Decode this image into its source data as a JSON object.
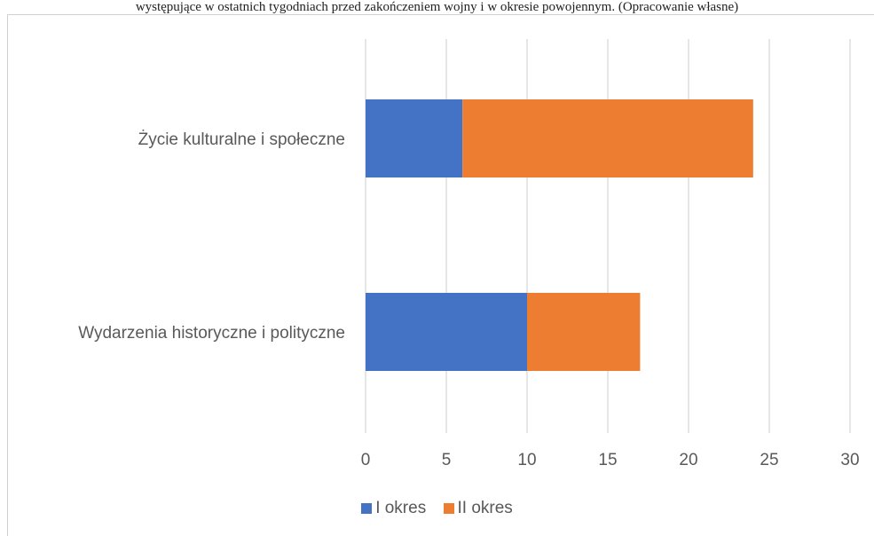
{
  "caption": "występujące w ostatnich tygodniach przed zakończeniem wojny i w okresie powojennym. (Opracowanie własne)",
  "chart_data": {
    "type": "bar",
    "orientation": "horizontal",
    "stacked": true,
    "title": "",
    "xlabel": "",
    "ylabel": "",
    "categories": [
      "Wydarzenia historyczne i polityczne",
      "Życie kulturalne i społeczne"
    ],
    "series": [
      {
        "name": "I okres",
        "color": "#4472c4",
        "values": [
          10,
          6
        ]
      },
      {
        "name": "II okres",
        "color": "#ed7d31",
        "values": [
          7,
          18
        ]
      }
    ],
    "xlim": [
      0,
      30
    ],
    "ticks": [
      "0",
      "5",
      "10",
      "15",
      "20",
      "25",
      "30"
    ],
    "grid": true,
    "legend_position": "bottom"
  }
}
